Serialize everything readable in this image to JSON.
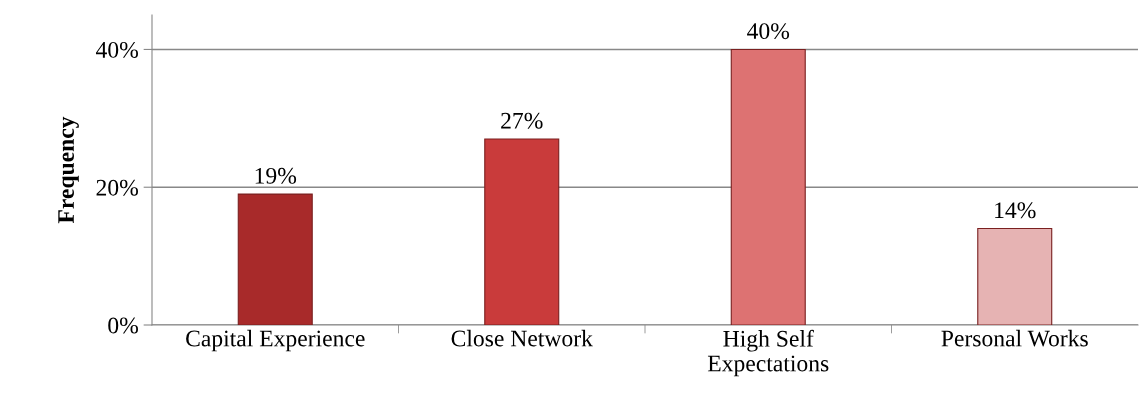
{
  "chart_data": {
    "type": "bar",
    "ylabel": "Frequency",
    "categories": [
      "Capital Experience",
      "Close Network",
      "High Self\nExpectations",
      "Personal Works"
    ],
    "values": [
      19,
      27,
      40,
      14
    ],
    "colors": [
      "#a82a2a",
      "#c93b3b",
      "#dd7272",
      "#e6b3b3"
    ],
    "value_labels": [
      "19%",
      "27%",
      "40%",
      "14%"
    ],
    "ylim": [
      0,
      45
    ],
    "yticks": [
      {
        "value": 0,
        "label": "0%"
      },
      {
        "value": 20,
        "label": "20%"
      },
      {
        "value": 40,
        "label": "40%"
      }
    ],
    "grid": "y"
  }
}
